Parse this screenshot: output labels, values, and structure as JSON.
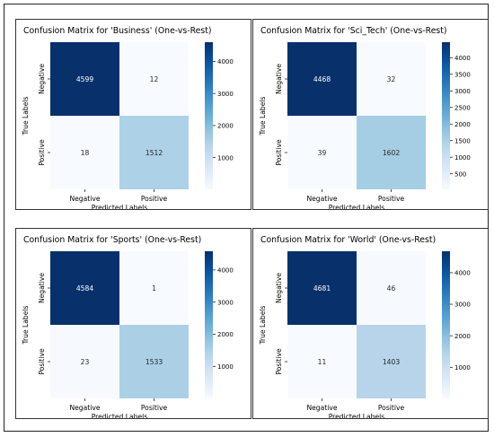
{
  "chart_data": [
    {
      "type": "heatmap",
      "title": "Confusion Matrix for 'Business' (One-vs-Rest)",
      "xlabel": "Predicted Labels",
      "ylabel": "True Labels",
      "x_categories": [
        "Negative",
        "Positive"
      ],
      "y_categories": [
        "Negative",
        "Positive"
      ],
      "values": [
        [
          4599,
          12
        ],
        [
          18,
          1512
        ]
      ],
      "colorbar": {
        "min": 12,
        "max": 4599,
        "ticks": [
          1000,
          2000,
          3000,
          4000
        ],
        "colormap": "Blues"
      }
    },
    {
      "type": "heatmap",
      "title": "Confusion Matrix for 'Sci_Tech' (One-vs-Rest)",
      "xlabel": "Predicted Labels",
      "ylabel": "True Labels",
      "x_categories": [
        "Negative",
        "Positive"
      ],
      "y_categories": [
        "Negative",
        "Positive"
      ],
      "values": [
        [
          4468,
          32
        ],
        [
          39,
          1602
        ]
      ],
      "colorbar": {
        "min": 32,
        "max": 4468,
        "ticks": [
          500,
          1000,
          1500,
          2000,
          2500,
          3000,
          3500,
          4000
        ],
        "colormap": "Blues"
      }
    },
    {
      "type": "heatmap",
      "title": "Confusion Matrix for 'Sports' (One-vs-Rest)",
      "xlabel": "Predicted Labels",
      "ylabel": "True Labels",
      "x_categories": [
        "Negative",
        "Positive"
      ],
      "y_categories": [
        "Negative",
        "Positive"
      ],
      "values": [
        [
          4584,
          1
        ],
        [
          23,
          1533
        ]
      ],
      "colorbar": {
        "min": 1,
        "max": 4584,
        "ticks": [
          1000,
          2000,
          3000,
          4000
        ],
        "colormap": "Blues"
      }
    },
    {
      "type": "heatmap",
      "title": "Confusion Matrix for 'World' (One-vs-Rest)",
      "xlabel": "Predicted Labels",
      "ylabel": "True Labels",
      "x_categories": [
        "Negative",
        "Positive"
      ],
      "y_categories": [
        "Negative",
        "Positive"
      ],
      "values": [
        [
          4681,
          46
        ],
        [
          11,
          1403
        ]
      ],
      "colorbar": {
        "min": 11,
        "max": 4681,
        "ticks": [
          1000,
          2000,
          3000,
          4000
        ],
        "colormap": "Blues"
      }
    }
  ]
}
